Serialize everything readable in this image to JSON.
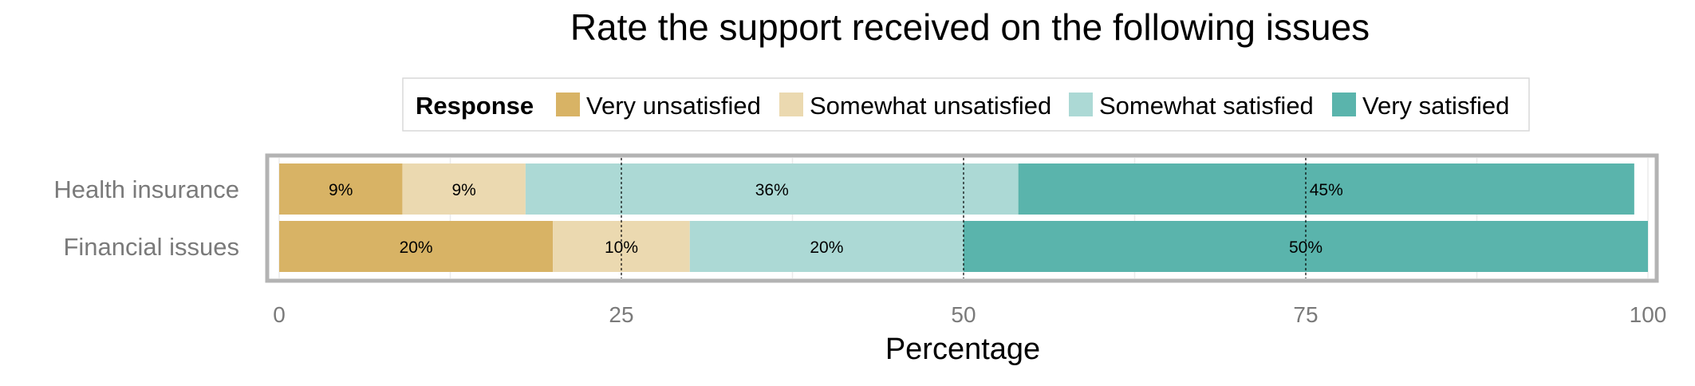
{
  "chart_data": {
    "type": "bar",
    "orientation": "horizontal",
    "stacked": true,
    "title": "Rate the support received on the following issues",
    "xlabel": "Percentage",
    "ylabel": "",
    "xlim": [
      0,
      100
    ],
    "xticks": [
      0,
      25,
      50,
      75,
      100
    ],
    "grid": true,
    "reference_lines": [
      25,
      50,
      75
    ],
    "legend": {
      "title": "Response",
      "position": "top"
    },
    "categories": [
      "Health insurance",
      "Financial issues"
    ],
    "series": [
      {
        "name": "Very unsatisfied",
        "color": "#d8b365",
        "values": [
          9,
          20
        ],
        "labels": [
          "9%",
          "20%"
        ]
      },
      {
        "name": "Somewhat unsatisfied",
        "color": "#ebd9b0",
        "values": [
          9,
          10
        ],
        "labels": [
          "9%",
          "10%"
        ]
      },
      {
        "name": "Somewhat satisfied",
        "color": "#acd9d5",
        "values": [
          36,
          20
        ],
        "labels": [
          "36%",
          "20%"
        ]
      },
      {
        "name": "Very satisfied",
        "color": "#5ab4ac",
        "values": [
          45,
          50
        ],
        "labels": [
          "45%",
          "50%"
        ]
      }
    ]
  }
}
